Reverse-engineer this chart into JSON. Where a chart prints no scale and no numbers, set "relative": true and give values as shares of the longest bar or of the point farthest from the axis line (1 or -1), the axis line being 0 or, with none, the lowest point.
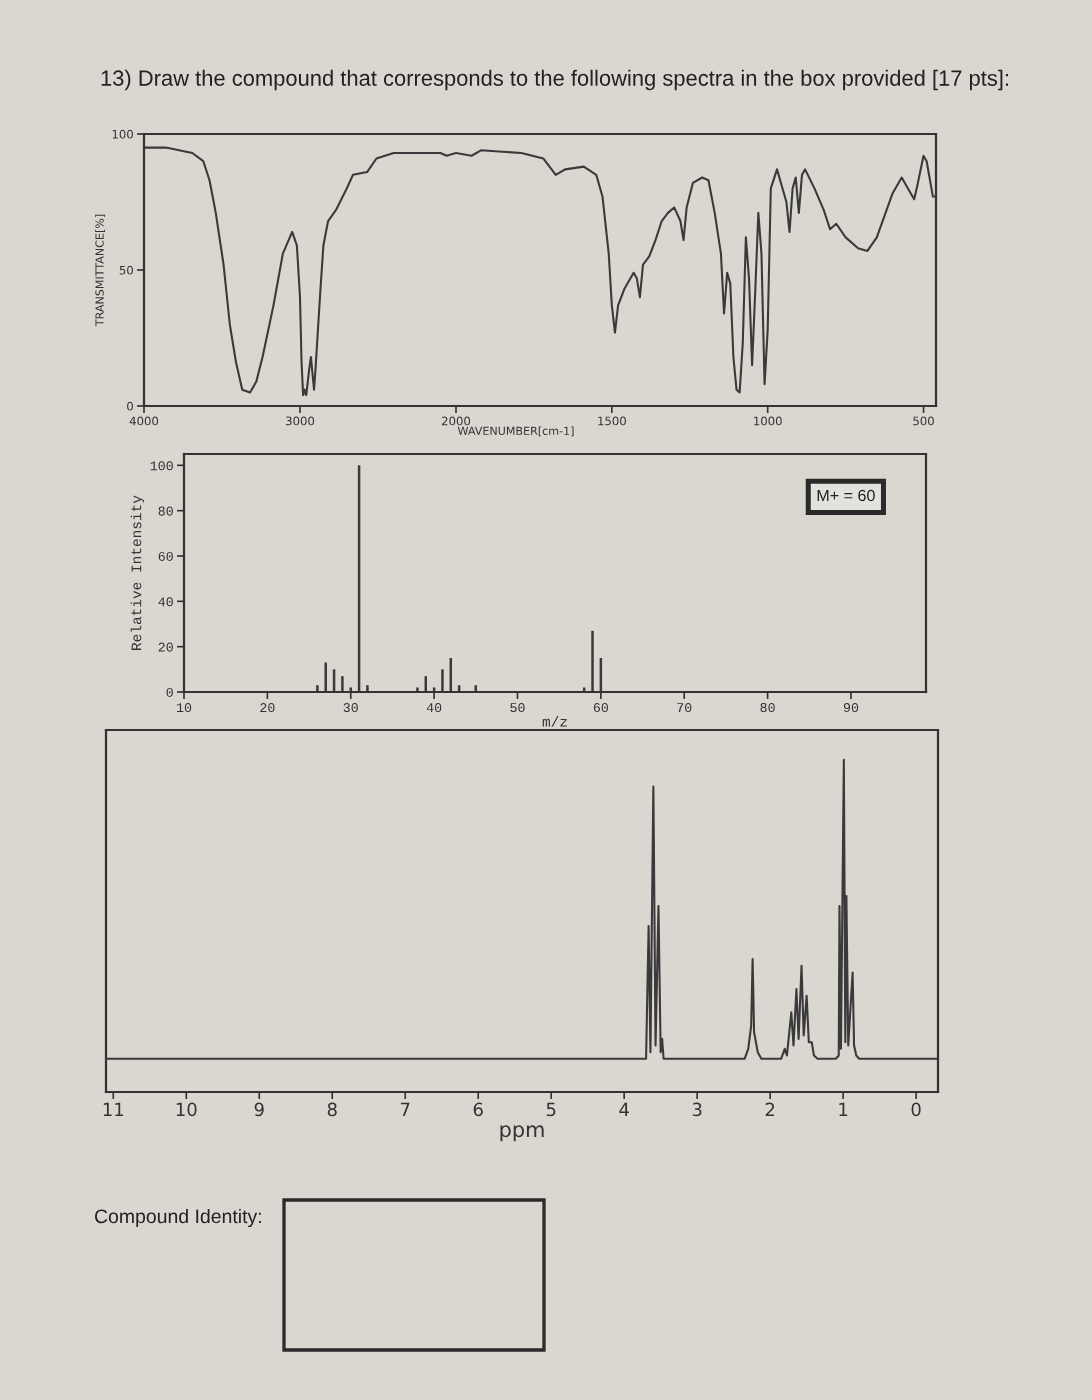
{
  "chart_data": [
    {
      "type": "line",
      "title": "13) Draw the compound that corresponds to the following spectra in the box provided [17 pts]:",
      "ylabel": "TRANSMITTANCE[%]",
      "color": "#3a3a3a",
      "x": [
        4000,
        3860,
        3690,
        3620,
        3580,
        3540,
        3490,
        3450,
        3410,
        3370,
        3320,
        3280,
        3240,
        3170,
        3110,
        3050,
        3020,
        3000,
        2990,
        2980,
        2970,
        2960,
        2940,
        2930,
        2910,
        2900,
        2870,
        2850,
        2820,
        2770,
        2700,
        2660,
        2570,
        2510,
        2400,
        2100,
        2060,
        2000
      ],
      "values": [
        95,
        95,
        93,
        90,
        83,
        71,
        52,
        30,
        16,
        6,
        5,
        9,
        18,
        37,
        56,
        64,
        59,
        40,
        16,
        4,
        6,
        4,
        14,
        18,
        6,
        14,
        42,
        59,
        68,
        72,
        80,
        85,
        86,
        91,
        93,
        93,
        92,
        93
      ],
      "xlim": [
        4000,
        2000
      ],
      "xticks": [
        4000,
        3000,
        2000
      ],
      "ylim": [
        0,
        100
      ],
      "yticks": [
        0,
        50,
        100
      ]
    },
    {
      "type": "line",
      "xlabel": "WAVENUMBER[cm-1]",
      "color": "#3a3a3a",
      "x": [
        2000,
        1950,
        1920,
        1790,
        1720,
        1680,
        1650,
        1590,
        1550,
        1530,
        1510,
        1500,
        1490,
        1480,
        1460,
        1430,
        1420,
        1410,
        1400,
        1380,
        1360,
        1340,
        1320,
        1300,
        1280,
        1270,
        1260,
        1240,
        1210,
        1190,
        1170,
        1150,
        1140,
        1130,
        1120,
        1110,
        1100,
        1090,
        1080,
        1070,
        1060,
        1050,
        1040,
        1030,
        1020,
        1010,
        1000,
        990,
        970,
        960,
        940,
        930,
        920,
        910,
        900,
        890,
        880,
        850,
        820,
        800,
        780,
        750,
        710,
        680,
        650,
        600,
        570,
        550,
        530,
        520,
        500,
        490,
        470,
        460
      ],
      "values": [
        93,
        92,
        94,
        93,
        91,
        85,
        87,
        88,
        85,
        77,
        56,
        37,
        27,
        37,
        43,
        49,
        47,
        40,
        52,
        55,
        61,
        68,
        71,
        73,
        68,
        61,
        73,
        82,
        84,
        83,
        71,
        56,
        34,
        49,
        45,
        18,
        6,
        5,
        23,
        62,
        47,
        15,
        42,
        71,
        56,
        8,
        28,
        80,
        87,
        83,
        75,
        64,
        80,
        84,
        71,
        85,
        87,
        80,
        72,
        65,
        67,
        62,
        58,
        57,
        62,
        78,
        84,
        80,
        76,
        81,
        92,
        90,
        77,
        77
      ],
      "xlim": [
        2000,
        460
      ],
      "xticks": [
        1500,
        1000,
        500
      ],
      "ylim": [
        0,
        100
      ],
      "yticks": [
        0,
        50,
        100
      ],
      "tick_labels": "x"
    },
    {
      "type": "bar",
      "xlabel": "m/z",
      "ylabel": "Relative Intensity",
      "color": "#3a3a3a",
      "x": [
        26,
        27,
        28,
        29,
        30,
        31,
        32,
        38,
        39,
        40,
        41,
        42,
        43,
        45,
        58,
        59,
        60
      ],
      "values": [
        3,
        13,
        10,
        7,
        2,
        100,
        3,
        2,
        7,
        2,
        10,
        15,
        3,
        3,
        2,
        27,
        15
      ],
      "xlim": [
        10,
        99
      ],
      "xticks": [
        10,
        20,
        30,
        40,
        50,
        60,
        70,
        80,
        90
      ],
      "ylim": [
        0,
        105
      ],
      "yticks": [
        0,
        20,
        40,
        60,
        80,
        100
      ],
      "annotations": [
        "M+ = 60"
      ]
    },
    {
      "type": "line",
      "relative": true,
      "xlabel": "ppm",
      "color": "#3a3a3a",
      "x": [
        11.1,
        3.7,
        3.665,
        3.64,
        3.6,
        3.57,
        3.53,
        3.5,
        3.48,
        3.46,
        2.35,
        2.3,
        2.26,
        2.24,
        2.22,
        2.17,
        2.12,
        1.85,
        1.8,
        1.77,
        1.71,
        1.68,
        1.64,
        1.61,
        1.57,
        1.54,
        1.5,
        1.47,
        1.43,
        1.4,
        1.35,
        1.1,
        1.06,
        1.05,
        1.03,
        0.99,
        0.97,
        0.955,
        0.93,
        0.87,
        0.85,
        0.82,
        0.78,
        -0.3
      ],
      "values": [
        0.1,
        0.1,
        0.5,
        0.12,
        0.92,
        0.14,
        0.56,
        0.12,
        0.16,
        0.1,
        0.1,
        0.13,
        0.2,
        0.4,
        0.18,
        0.12,
        0.1,
        0.1,
        0.13,
        0.11,
        0.24,
        0.14,
        0.31,
        0.16,
        0.38,
        0.17,
        0.29,
        0.15,
        0.15,
        0.11,
        0.1,
        0.1,
        0.11,
        0.56,
        0.13,
        1.0,
        0.15,
        0.59,
        0.14,
        0.36,
        0.14,
        0.11,
        0.1,
        0.1
      ],
      "xlim": [
        11.1,
        -0.3
      ],
      "xticks": [
        11,
        10,
        9,
        8,
        7,
        6,
        5,
        4,
        3,
        2,
        1,
        0
      ],
      "annotations": [
        "Compound Identity:"
      ]
    }
  ]
}
